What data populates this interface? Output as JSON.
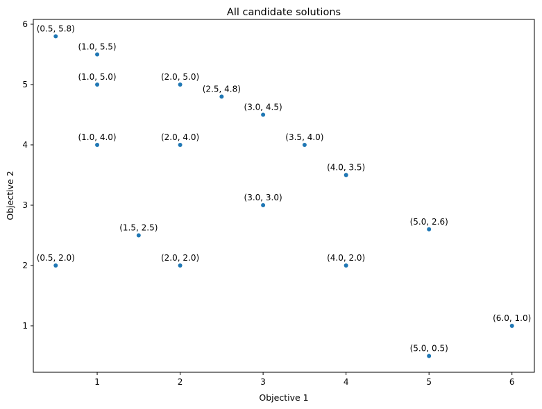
{
  "chart_data": {
    "type": "scatter",
    "title": "All candidate solutions",
    "xlabel": "Objective 1",
    "ylabel": "Objective 2",
    "xlim": [
      0.23,
      6.27
    ],
    "ylim": [
      0.23,
      6.08
    ],
    "xticks": [
      1,
      2,
      3,
      4,
      5,
      6
    ],
    "yticks": [
      1,
      2,
      3,
      4,
      5,
      6
    ],
    "grid": false,
    "marker_color": "#1f77b4",
    "points": [
      {
        "x": 0.5,
        "y": 5.8,
        "label": "(0.5, 5.8)"
      },
      {
        "x": 1.0,
        "y": 5.5,
        "label": "(1.0, 5.5)"
      },
      {
        "x": 1.0,
        "y": 5.0,
        "label": "(1.0, 5.0)"
      },
      {
        "x": 2.0,
        "y": 5.0,
        "label": "(2.0, 5.0)"
      },
      {
        "x": 2.5,
        "y": 4.8,
        "label": "(2.5, 4.8)"
      },
      {
        "x": 3.0,
        "y": 4.5,
        "label": "(3.0, 4.5)"
      },
      {
        "x": 1.0,
        "y": 4.0,
        "label": "(1.0, 4.0)"
      },
      {
        "x": 2.0,
        "y": 4.0,
        "label": "(2.0, 4.0)"
      },
      {
        "x": 3.5,
        "y": 4.0,
        "label": "(3.5, 4.0)"
      },
      {
        "x": 4.0,
        "y": 3.5,
        "label": "(4.0, 3.5)"
      },
      {
        "x": 3.0,
        "y": 3.0,
        "label": "(3.0, 3.0)"
      },
      {
        "x": 5.0,
        "y": 2.6,
        "label": "(5.0, 2.6)"
      },
      {
        "x": 1.5,
        "y": 2.5,
        "label": "(1.5, 2.5)"
      },
      {
        "x": 0.5,
        "y": 2.0,
        "label": "(0.5, 2.0)"
      },
      {
        "x": 2.0,
        "y": 2.0,
        "label": "(2.0, 2.0)"
      },
      {
        "x": 4.0,
        "y": 2.0,
        "label": "(4.0, 2.0)"
      },
      {
        "x": 6.0,
        "y": 1.0,
        "label": "(6.0, 1.0)"
      },
      {
        "x": 5.0,
        "y": 0.5,
        "label": "(5.0, 0.5)"
      }
    ]
  }
}
